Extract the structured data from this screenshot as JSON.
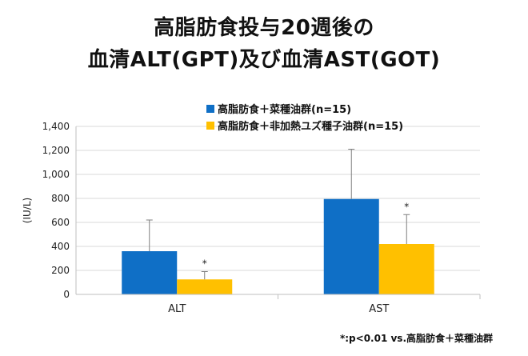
{
  "title_line1": "高脂肪食投与20週後の",
  "title_line2": "血清ALT(GPT)及び血清AST(GOT)",
  "footnote": "*:p<0.01 vs.高脂肪食＋菜種油群",
  "chart_data": {
    "type": "bar",
    "categories": [
      "ALT",
      "AST"
    ],
    "ylabel": "(IU/L)",
    "ylim": [
      0,
      1400
    ],
    "yticks": [
      0,
      200,
      400,
      600,
      800,
      1000,
      1200,
      1400
    ],
    "ytick_labels": [
      "0",
      "200",
      "400",
      "600",
      "800",
      "1,000",
      "1,200",
      "1,400"
    ],
    "legend_position": "top-right",
    "grid": true,
    "series": [
      {
        "name": "高脂肪食＋菜種油群(n=15)",
        "color": "#0f6fc6",
        "values": [
          360,
          795
        ],
        "error_upper": [
          620,
          1210
        ],
        "significance": [
          "",
          ""
        ]
      },
      {
        "name": "高脂肪食＋非加熱ユズ種子油群(n=15)",
        "color": "#ffc000",
        "values": [
          125,
          420
        ],
        "error_upper": [
          190,
          665
        ],
        "significance": [
          "*",
          "*"
        ]
      }
    ]
  }
}
